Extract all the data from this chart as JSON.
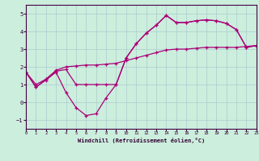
{
  "xlabel": "Windchill (Refroidissement éolien,°C)",
  "background_color": "#cceedd",
  "grid_color": "#aacccc",
  "line_color": "#aa0077",
  "xlim": [
    0,
    23
  ],
  "ylim": [
    -1.5,
    5.5
  ],
  "yticks": [
    -1,
    0,
    1,
    2,
    3,
    4,
    5
  ],
  "xticks": [
    0,
    1,
    2,
    3,
    4,
    5,
    6,
    7,
    8,
    9,
    10,
    11,
    12,
    13,
    14,
    15,
    16,
    17,
    18,
    19,
    20,
    21,
    22,
    23
  ],
  "line1_x": [
    0,
    1,
    2,
    3,
    4,
    5,
    6,
    7,
    8,
    9,
    10,
    11,
    12,
    13,
    14,
    15,
    16,
    17,
    18,
    19,
    20,
    21,
    22,
    23
  ],
  "line1_y": [
    1.7,
    0.85,
    1.25,
    1.7,
    0.55,
    -0.3,
    -0.75,
    -0.65,
    0.25,
    1.0,
    2.5,
    3.3,
    3.9,
    4.35,
    4.9,
    4.5,
    4.5,
    4.6,
    4.65,
    4.6,
    4.45,
    4.1,
    3.1,
    3.2
  ],
  "line2_x": [
    0,
    1,
    2,
    3,
    4,
    5,
    6,
    7,
    8,
    9,
    10,
    11,
    12,
    13,
    14,
    15,
    16,
    17,
    18,
    19,
    20,
    21,
    22,
    23
  ],
  "line2_y": [
    1.7,
    0.85,
    1.3,
    1.75,
    1.85,
    1.0,
    1.0,
    1.0,
    1.0,
    1.0,
    2.5,
    3.3,
    3.9,
    4.35,
    4.9,
    4.5,
    4.5,
    4.6,
    4.65,
    4.6,
    4.45,
    4.1,
    3.1,
    3.2
  ],
  "line3_x": [
    0,
    1,
    2,
    3,
    4,
    5,
    6,
    7,
    8,
    9,
    10,
    11,
    12,
    13,
    14,
    15,
    16,
    17,
    18,
    19,
    20,
    21,
    22,
    23
  ],
  "line3_y": [
    1.7,
    1.0,
    1.3,
    1.8,
    2.0,
    2.05,
    2.1,
    2.1,
    2.15,
    2.2,
    2.35,
    2.5,
    2.65,
    2.8,
    2.95,
    3.0,
    3.0,
    3.05,
    3.1,
    3.1,
    3.1,
    3.1,
    3.15,
    3.2
  ]
}
